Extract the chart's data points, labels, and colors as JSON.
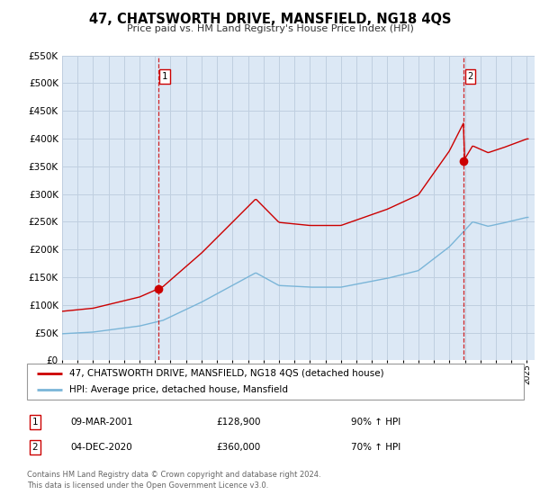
{
  "title": "47, CHATSWORTH DRIVE, MANSFIELD, NG18 4QS",
  "subtitle": "Price paid vs. HM Land Registry's House Price Index (HPI)",
  "hpi_label": "HPI: Average price, detached house, Mansfield",
  "property_label": "47, CHATSWORTH DRIVE, MANSFIELD, NG18 4QS (detached house)",
  "footer1": "Contains HM Land Registry data © Crown copyright and database right 2024.",
  "footer2": "This data is licensed under the Open Government Licence v3.0.",
  "sale1_date": "09-MAR-2001",
  "sale1_price": "£128,900",
  "sale1_hpi": "90% ↑ HPI",
  "sale1_year": 2001.19,
  "sale1_value": 128900,
  "sale2_date": "04-DEC-2020",
  "sale2_price": "£360,000",
  "sale2_hpi": "70% ↑ HPI",
  "sale2_year": 2020.92,
  "sale2_value": 360000,
  "hpi_color": "#7ab5d8",
  "property_color": "#cc0000",
  "vline_color": "#cc0000",
  "dot_color": "#cc0000",
  "background_color": "#ffffff",
  "chart_bg_color": "#dce8f5",
  "grid_color": "#c0cfe0",
  "ylim": [
    0,
    550000
  ],
  "xlim_start": 1995.0,
  "xlim_end": 2025.5,
  "yticks": [
    0,
    50000,
    100000,
    150000,
    200000,
    250000,
    300000,
    350000,
    400000,
    450000,
    500000,
    550000
  ]
}
